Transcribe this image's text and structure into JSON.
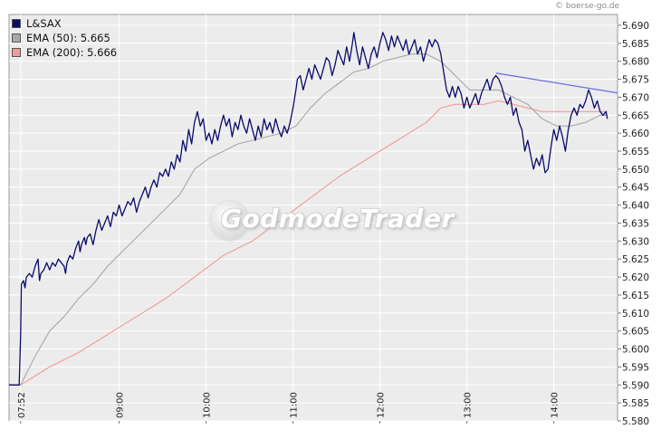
{
  "source_credit": "© boerse-go.de",
  "watermark": "GodmodeTrader",
  "legend": [
    {
      "label": "L&SAX",
      "color": "#0b0b6b"
    },
    {
      "label": "EMA (50): 5.665",
      "color": "#a8a8a8"
    },
    {
      "label": "EMA (200): 5.666",
      "color": "#f29a9a"
    }
  ],
  "chart_data": {
    "type": "line",
    "x_ticks": [
      {
        "t": 0,
        "label": "07:52"
      },
      {
        "t": 68,
        "label": "09:00"
      },
      {
        "t": 128,
        "label": "10:00"
      },
      {
        "t": 188,
        "label": "11:00"
      },
      {
        "t": 248,
        "label": "12:00"
      },
      {
        "t": 308,
        "label": "13:00"
      },
      {
        "t": 368,
        "label": "14:00"
      }
    ],
    "x_range": [
      -8,
      412
    ],
    "y_ticks": [
      "5.690",
      "5.685",
      "5.680",
      "5.675",
      "5.670",
      "5.665",
      "5.660",
      "5.655",
      "5.650",
      "5.645",
      "5.640",
      "5.635",
      "5.630",
      "5.625",
      "5.620",
      "5.615",
      "5.610",
      "5.605",
      "5.600",
      "5.595",
      "5.590",
      "5.585",
      "5.580"
    ],
    "ylim": [
      5.58,
      5.693
    ],
    "grid": true,
    "series": [
      {
        "name": "L&SAX",
        "color": "#0b0b6b",
        "points": [
          [
            -8,
            5.59
          ],
          [
            -1,
            5.59
          ],
          [
            0,
            5.604
          ],
          [
            0.5,
            5.618
          ],
          [
            2,
            5.619
          ],
          [
            3,
            5.617
          ],
          [
            4,
            5.62
          ],
          [
            6,
            5.621
          ],
          [
            8,
            5.62
          ],
          [
            10,
            5.623
          ],
          [
            12,
            5.625
          ],
          [
            13,
            5.619
          ],
          [
            14,
            5.621
          ],
          [
            16,
            5.622
          ],
          [
            18,
            5.624
          ],
          [
            20,
            5.622
          ],
          [
            22,
            5.624
          ],
          [
            24,
            5.623
          ],
          [
            26,
            5.625
          ],
          [
            28,
            5.624
          ],
          [
            30,
            5.623
          ],
          [
            31,
            5.621
          ],
          [
            32,
            5.624
          ],
          [
            34,
            5.626
          ],
          [
            36,
            5.625
          ],
          [
            38,
            5.628
          ],
          [
            40,
            5.63
          ],
          [
            41,
            5.627
          ],
          [
            42,
            5.629
          ],
          [
            44,
            5.631
          ],
          [
            45,
            5.629
          ],
          [
            46,
            5.631
          ],
          [
            48,
            5.632
          ],
          [
            50,
            5.629
          ],
          [
            52,
            5.633
          ],
          [
            54,
            5.636
          ],
          [
            56,
            5.633
          ],
          [
            58,
            5.635
          ],
          [
            60,
            5.637
          ],
          [
            62,
            5.634
          ],
          [
            64,
            5.638
          ],
          [
            66,
            5.637
          ],
          [
            68,
            5.64
          ],
          [
            70,
            5.637
          ],
          [
            72,
            5.639
          ],
          [
            74,
            5.641
          ],
          [
            76,
            5.64
          ],
          [
            78,
            5.642
          ],
          [
            80,
            5.638
          ],
          [
            82,
            5.641
          ],
          [
            84,
            5.643
          ],
          [
            86,
            5.645
          ],
          [
            88,
            5.642
          ],
          [
            90,
            5.645
          ],
          [
            92,
            5.647
          ],
          [
            94,
            5.645
          ],
          [
            96,
            5.649
          ],
          [
            98,
            5.648
          ],
          [
            100,
            5.65
          ],
          [
            102,
            5.648
          ],
          [
            104,
            5.652
          ],
          [
            106,
            5.65
          ],
          [
            108,
            5.654
          ],
          [
            110,
            5.652
          ],
          [
            112,
            5.658
          ],
          [
            114,
            5.655
          ],
          [
            116,
            5.661
          ],
          [
            118,
            5.657
          ],
          [
            120,
            5.663
          ],
          [
            122,
            5.666
          ],
          [
            124,
            5.662
          ],
          [
            126,
            5.664
          ],
          [
            128,
            5.658
          ],
          [
            130,
            5.66
          ],
          [
            132,
            5.657
          ],
          [
            134,
            5.661
          ],
          [
            136,
            5.658
          ],
          [
            138,
            5.662
          ],
          [
            140,
            5.665
          ],
          [
            142,
            5.662
          ],
          [
            144,
            5.664
          ],
          [
            146,
            5.659
          ],
          [
            148,
            5.663
          ],
          [
            150,
            5.661
          ],
          [
            152,
            5.665
          ],
          [
            154,
            5.662
          ],
          [
            156,
            5.66
          ],
          [
            158,
            5.664
          ],
          [
            160,
            5.661
          ],
          [
            162,
            5.658
          ],
          [
            164,
            5.662
          ],
          [
            166,
            5.659
          ],
          [
            168,
            5.664
          ],
          [
            170,
            5.661
          ],
          [
            172,
            5.663
          ],
          [
            174,
            5.66
          ],
          [
            176,
            5.664
          ],
          [
            178,
            5.661
          ],
          [
            180,
            5.659
          ],
          [
            182,
            5.662
          ],
          [
            184,
            5.66
          ],
          [
            186,
            5.663
          ],
          [
            188,
            5.667
          ],
          [
            190,
            5.672
          ],
          [
            191,
            5.675
          ],
          [
            193,
            5.676
          ],
          [
            195,
            5.672
          ],
          [
            197,
            5.675
          ],
          [
            199,
            5.678
          ],
          [
            201,
            5.675
          ],
          [
            203,
            5.679
          ],
          [
            205,
            5.677
          ],
          [
            207,
            5.675
          ],
          [
            209,
            5.678
          ],
          [
            211,
            5.681
          ],
          [
            213,
            5.68
          ],
          [
            215,
            5.676
          ],
          [
            217,
            5.679
          ],
          [
            219,
            5.683
          ],
          [
            221,
            5.681
          ],
          [
            223,
            5.679
          ],
          [
            225,
            5.684
          ],
          [
            227,
            5.68
          ],
          [
            229,
            5.685
          ],
          [
            230,
            5.688
          ],
          [
            232,
            5.683
          ],
          [
            234,
            5.679
          ],
          [
            236,
            5.684
          ],
          [
            238,
            5.681
          ],
          [
            240,
            5.678
          ],
          [
            242,
            5.682
          ],
          [
            244,
            5.684
          ],
          [
            246,
            5.681
          ],
          [
            248,
            5.685
          ],
          [
            250,
            5.688
          ],
          [
            252,
            5.686
          ],
          [
            254,
            5.683
          ],
          [
            256,
            5.687
          ],
          [
            258,
            5.684
          ],
          [
            260,
            5.687
          ],
          [
            262,
            5.685
          ],
          [
            264,
            5.683
          ],
          [
            266,
            5.686
          ],
          [
            268,
            5.682
          ],
          [
            270,
            5.684
          ],
          [
            272,
            5.686
          ],
          [
            274,
            5.682
          ],
          [
            276,
            5.684
          ],
          [
            278,
            5.68
          ],
          [
            280,
            5.683
          ],
          [
            282,
            5.686
          ],
          [
            284,
            5.684
          ],
          [
            286,
            5.686
          ],
          [
            288,
            5.685
          ],
          [
            290,
            5.682
          ],
          [
            292,
            5.677
          ],
          [
            294,
            5.672
          ],
          [
            296,
            5.67
          ],
          [
            298,
            5.673
          ],
          [
            300,
            5.67
          ],
          [
            302,
            5.673
          ],
          [
            304,
            5.671
          ],
          [
            306,
            5.667
          ],
          [
            308,
            5.67
          ],
          [
            310,
            5.667
          ],
          [
            312,
            5.669
          ],
          [
            314,
            5.671
          ],
          [
            316,
            5.668
          ],
          [
            318,
            5.671
          ],
          [
            320,
            5.673
          ],
          [
            322,
            5.675
          ],
          [
            324,
            5.672
          ],
          [
            326,
            5.675
          ],
          [
            328,
            5.676
          ],
          [
            330,
            5.675
          ],
          [
            332,
            5.673
          ],
          [
            334,
            5.67
          ],
          [
            336,
            5.668
          ],
          [
            338,
            5.67
          ],
          [
            340,
            5.665
          ],
          [
            342,
            5.667
          ],
          [
            344,
            5.663
          ],
          [
            346,
            5.661
          ],
          [
            348,
            5.655
          ],
          [
            350,
            5.658
          ],
          [
            352,
            5.654
          ],
          [
            354,
            5.65
          ],
          [
            356,
            5.653
          ],
          [
            358,
            5.651
          ],
          [
            360,
            5.654
          ],
          [
            362,
            5.649
          ],
          [
            364,
            5.65
          ],
          [
            366,
            5.656
          ],
          [
            368,
            5.661
          ],
          [
            370,
            5.658
          ],
          [
            372,
            5.662
          ],
          [
            374,
            5.659
          ],
          [
            376,
            5.655
          ],
          [
            378,
            5.661
          ],
          [
            380,
            5.665
          ],
          [
            382,
            5.667
          ],
          [
            384,
            5.665
          ],
          [
            386,
            5.668
          ],
          [
            388,
            5.667
          ],
          [
            390,
            5.669
          ],
          [
            392,
            5.672
          ],
          [
            394,
            5.67
          ],
          [
            396,
            5.667
          ],
          [
            398,
            5.669
          ],
          [
            400,
            5.666
          ],
          [
            402,
            5.665
          ],
          [
            404,
            5.666
          ],
          [
            405,
            5.664
          ]
        ]
      },
      {
        "name": "EMA (50): 5.665",
        "color": "#a8a8a8",
        "points": [
          [
            -8,
            5.59
          ],
          [
            0,
            5.59
          ],
          [
            10,
            5.598
          ],
          [
            20,
            5.605
          ],
          [
            30,
            5.609
          ],
          [
            40,
            5.614
          ],
          [
            50,
            5.618
          ],
          [
            60,
            5.623
          ],
          [
            70,
            5.627
          ],
          [
            80,
            5.631
          ],
          [
            90,
            5.635
          ],
          [
            100,
            5.639
          ],
          [
            110,
            5.643
          ],
          [
            120,
            5.65
          ],
          [
            130,
            5.653
          ],
          [
            140,
            5.655
          ],
          [
            150,
            5.657
          ],
          [
            160,
            5.658
          ],
          [
            170,
            5.659
          ],
          [
            180,
            5.66
          ],
          [
            190,
            5.662
          ],
          [
            200,
            5.667
          ],
          [
            210,
            5.671
          ],
          [
            220,
            5.674
          ],
          [
            230,
            5.677
          ],
          [
            240,
            5.678
          ],
          [
            250,
            5.68
          ],
          [
            260,
            5.681
          ],
          [
            270,
            5.682
          ],
          [
            280,
            5.682
          ],
          [
            290,
            5.68
          ],
          [
            300,
            5.676
          ],
          [
            310,
            5.672
          ],
          [
            320,
            5.672
          ],
          [
            330,
            5.672
          ],
          [
            340,
            5.67
          ],
          [
            350,
            5.668
          ],
          [
            360,
            5.664
          ],
          [
            370,
            5.662
          ],
          [
            380,
            5.662
          ],
          [
            390,
            5.663
          ],
          [
            400,
            5.665
          ],
          [
            405,
            5.665
          ]
        ]
      },
      {
        "name": "EMA (200): 5.666",
        "color": "#f29a9a",
        "points": [
          [
            -8,
            5.59
          ],
          [
            0,
            5.59
          ],
          [
            20,
            5.595
          ],
          [
            40,
            5.599
          ],
          [
            60,
            5.604
          ],
          [
            80,
            5.609
          ],
          [
            100,
            5.614
          ],
          [
            120,
            5.62
          ],
          [
            140,
            5.626
          ],
          [
            160,
            5.63
          ],
          [
            180,
            5.636
          ],
          [
            200,
            5.642
          ],
          [
            220,
            5.648
          ],
          [
            240,
            5.653
          ],
          [
            260,
            5.658
          ],
          [
            280,
            5.663
          ],
          [
            290,
            5.667
          ],
          [
            300,
            5.668
          ],
          [
            310,
            5.668
          ],
          [
            320,
            5.668
          ],
          [
            330,
            5.669
          ],
          [
            340,
            5.668
          ],
          [
            350,
            5.667
          ],
          [
            360,
            5.666
          ],
          [
            370,
            5.666
          ],
          [
            380,
            5.666
          ],
          [
            390,
            5.666
          ],
          [
            400,
            5.666
          ],
          [
            405,
            5.666
          ]
        ]
      }
    ],
    "annotations": [
      {
        "type": "trendline",
        "color": "#6a6ae8",
        "from": [
          328,
          5.6767
        ],
        "to": [
          412,
          5.6712
        ]
      }
    ]
  }
}
